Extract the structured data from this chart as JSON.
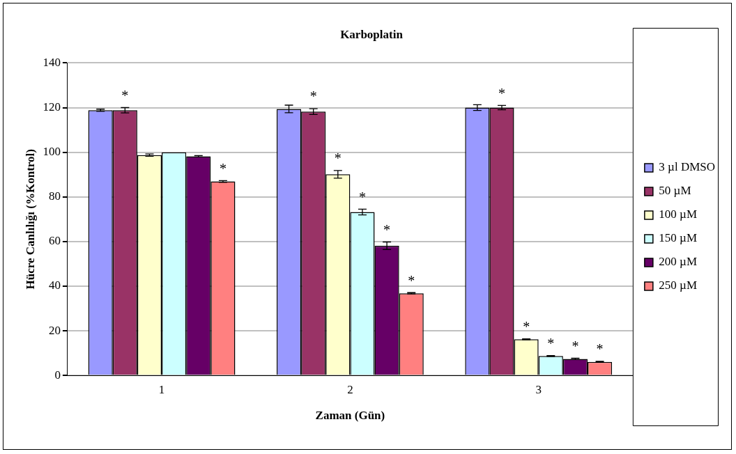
{
  "chart_data": {
    "type": "bar",
    "title": "Karboplatin",
    "xlabel": "Zaman (Gün)",
    "ylabel": "Hücre Canlılığı (%Kontrol)",
    "categories": [
      "1",
      "2",
      "3"
    ],
    "series": [
      {
        "name": "3 µl DMSO",
        "color": "#9999ff",
        "values": [
          118.8,
          119.4,
          120
        ],
        "errors": [
          0.5,
          1.7,
          1.3
        ]
      },
      {
        "name": "50 µM",
        "color": "#993366",
        "values": [
          118.8,
          118.2,
          120
        ],
        "errors": [
          1.2,
          1.3,
          1
        ],
        "value_labels": [
          "*",
          "*",
          "*"
        ]
      },
      {
        "name": "100 µM",
        "color": "#ffffcc",
        "values": [
          98.7,
          90.1,
          16.2
        ],
        "errors": [
          0.5,
          1.7,
          0.2
        ],
        "value_labels": [
          null,
          "*",
          "*"
        ]
      },
      {
        "name": "150 µM",
        "color": "#ccffff",
        "values": [
          100,
          73.2,
          8.7
        ],
        "errors": [
          null,
          1.3,
          0.2
        ],
        "value_labels": [
          null,
          "*",
          "*"
        ]
      },
      {
        "name": "200 µM",
        "color": "#660066",
        "values": [
          98.2,
          58.1,
          7.4
        ],
        "errors": [
          0.3,
          1.7,
          0.3
        ],
        "value_labels": [
          null,
          "*",
          "*"
        ]
      },
      {
        "name": "250 µM",
        "color": "#ff8080",
        "values": [
          86.9,
          36.8,
          6.1
        ],
        "errors": [
          0.4,
          0.3,
          0.2
        ],
        "value_labels": [
          "*",
          "*",
          "*"
        ]
      }
    ],
    "ylim": [
      0,
      140
    ],
    "yticks": [
      0,
      20,
      40,
      60,
      80,
      100,
      120,
      140
    ],
    "grid": "y",
    "legend": "right"
  }
}
